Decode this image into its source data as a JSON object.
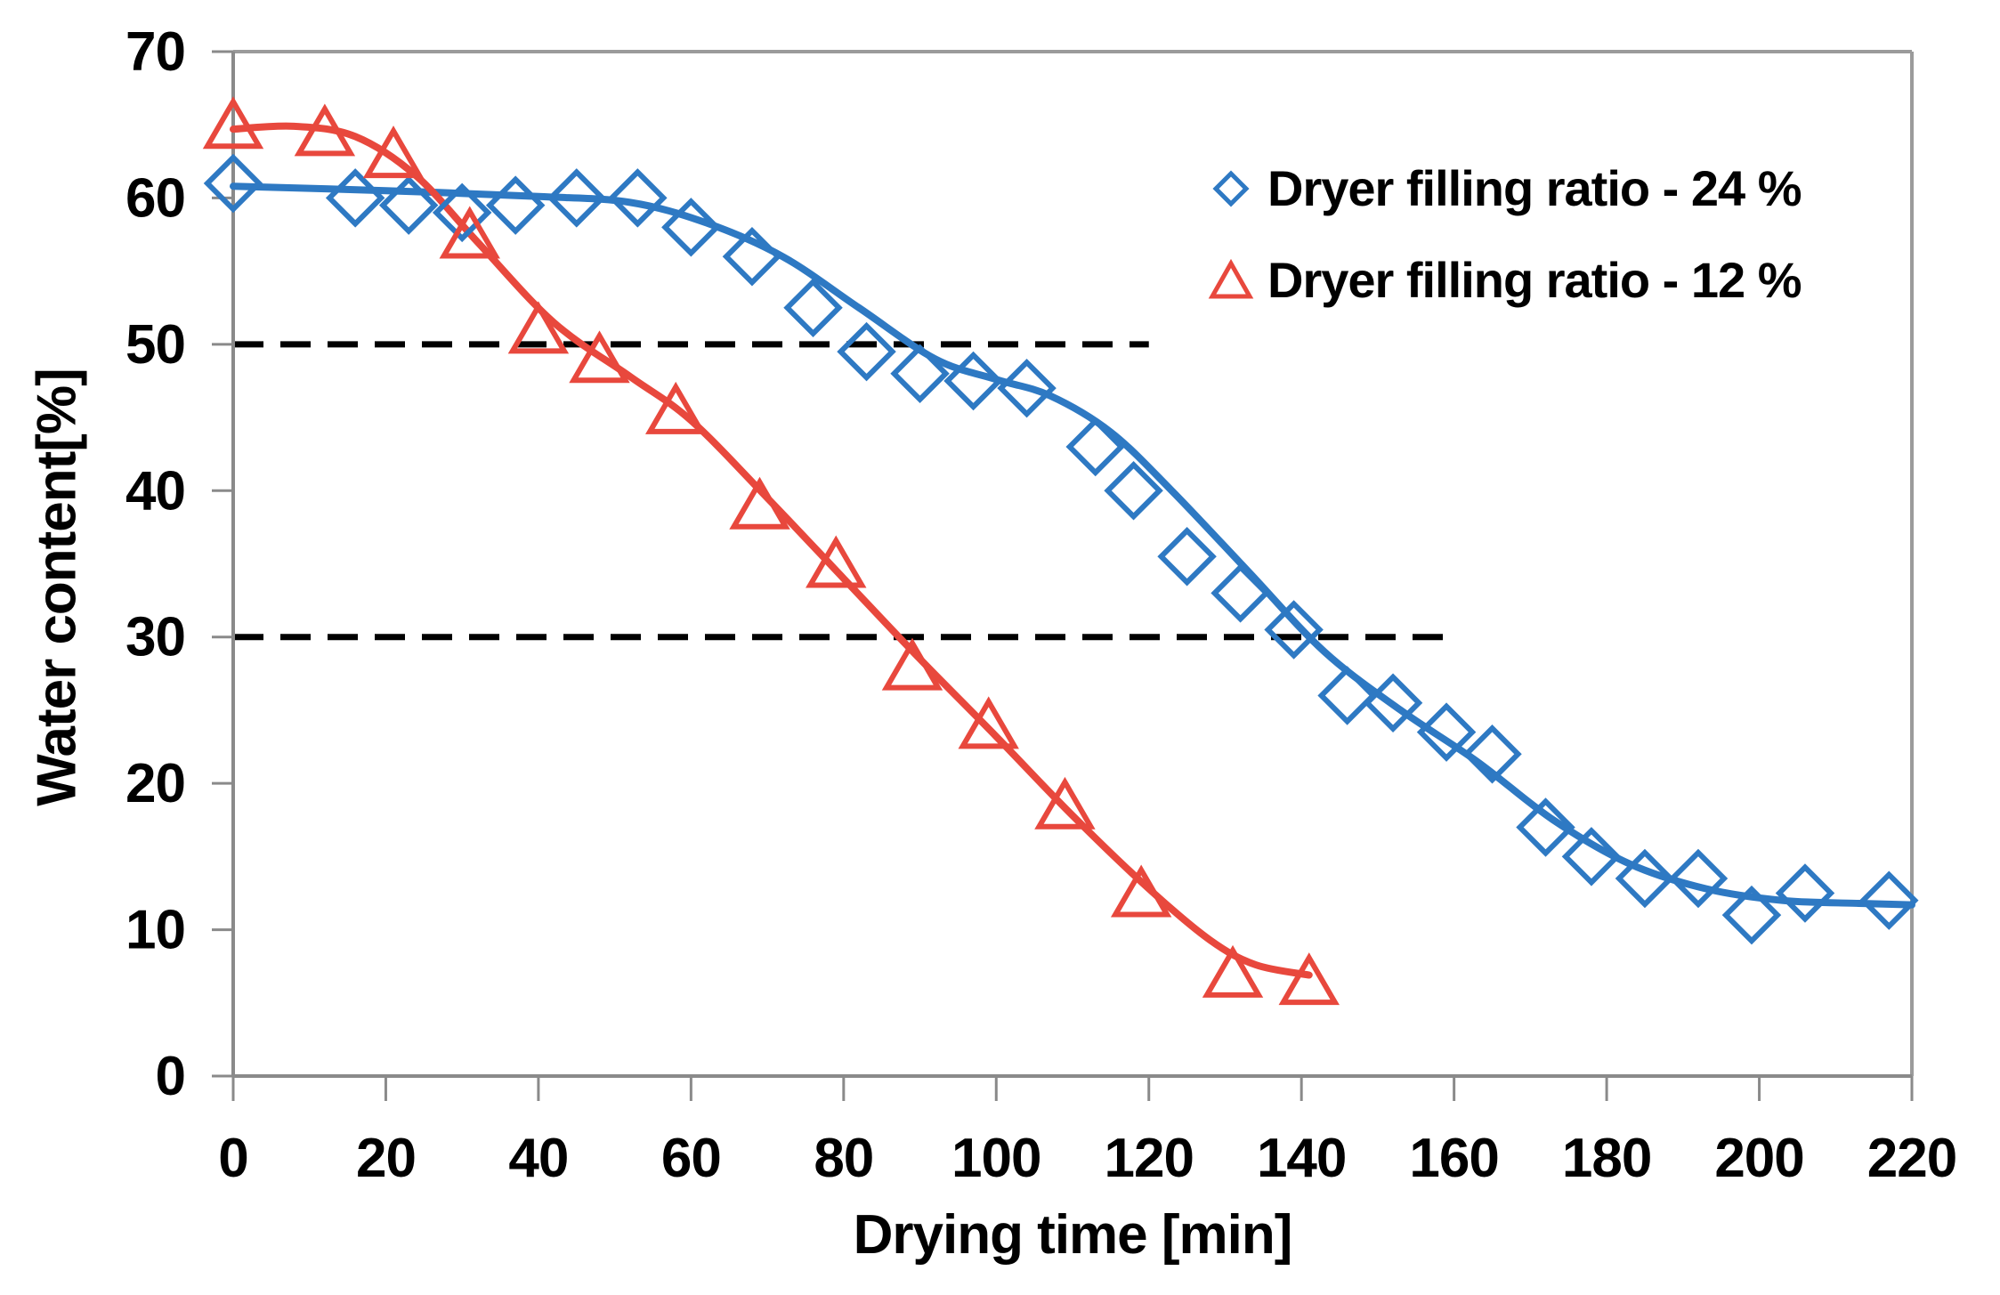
{
  "chart_data": {
    "type": "scatter",
    "title": "",
    "xlabel": "Drying time [min]",
    "ylabel": "Water content[%]",
    "xlim": [
      0,
      220
    ],
    "ylim": [
      0,
      70
    ],
    "xticks": [
      0,
      20,
      40,
      60,
      80,
      100,
      120,
      140,
      160,
      180,
      200,
      220
    ],
    "yticks": [
      0,
      10,
      20,
      30,
      40,
      50,
      60,
      70
    ],
    "grid": false,
    "legend_position": "top-right-inside",
    "series": [
      {
        "name": "Dryer filling ratio - 24 %",
        "marker": "diamond",
        "color": "#2E79C3",
        "points": [
          [
            0,
            61
          ],
          [
            16,
            60
          ],
          [
            23,
            59.5
          ],
          [
            30,
            59
          ],
          [
            37,
            59.5
          ],
          [
            45,
            60
          ],
          [
            53,
            60
          ],
          [
            60,
            58
          ],
          [
            68,
            56
          ],
          [
            76,
            52.5
          ],
          [
            83,
            49.5
          ],
          [
            90,
            48
          ],
          [
            97,
            47.5
          ],
          [
            104,
            47
          ],
          [
            113,
            43
          ],
          [
            118,
            40
          ],
          [
            125,
            35.5
          ],
          [
            132,
            33
          ],
          [
            139,
            30.5
          ],
          [
            146,
            26
          ],
          [
            152,
            25.5
          ],
          [
            159,
            23.5
          ],
          [
            165,
            22
          ],
          [
            172,
            17
          ],
          [
            178,
            15
          ],
          [
            185,
            13.5
          ],
          [
            192,
            13.5
          ],
          [
            199,
            11
          ],
          [
            206,
            12.5
          ],
          [
            217,
            12
          ]
        ],
        "trend": [
          [
            0,
            60.8
          ],
          [
            20,
            60.5
          ],
          [
            40,
            60.1
          ],
          [
            52,
            59.7
          ],
          [
            62,
            58.3
          ],
          [
            72,
            56
          ],
          [
            82,
            52.5
          ],
          [
            92,
            49
          ],
          [
            100,
            47.6
          ],
          [
            107,
            46.5
          ],
          [
            115,
            44
          ],
          [
            123,
            40
          ],
          [
            133,
            34.5
          ],
          [
            143,
            29
          ],
          [
            153,
            25
          ],
          [
            163,
            21.5
          ],
          [
            173,
            17.5
          ],
          [
            183,
            14.5
          ],
          [
            193,
            12.8
          ],
          [
            203,
            12
          ],
          [
            213,
            11.8
          ],
          [
            220,
            11.7
          ]
        ]
      },
      {
        "name": "Dryer filling ratio - 12 %",
        "marker": "triangle",
        "color": "#E8483D",
        "points": [
          [
            0,
            65
          ],
          [
            12,
            64.5
          ],
          [
            21,
            63
          ],
          [
            31,
            57.5
          ],
          [
            40,
            51
          ],
          [
            48,
            49
          ],
          [
            58,
            45.5
          ],
          [
            69,
            39
          ],
          [
            79,
            35
          ],
          [
            89,
            28
          ],
          [
            99,
            24
          ],
          [
            109,
            18.5
          ],
          [
            119,
            12.5
          ],
          [
            131,
            7
          ],
          [
            141,
            6.5
          ]
        ],
        "trend": [
          [
            0,
            64.7
          ],
          [
            8,
            64.9
          ],
          [
            16,
            64.2
          ],
          [
            24,
            61.5
          ],
          [
            32,
            57
          ],
          [
            42,
            51.5
          ],
          [
            52,
            47.8
          ],
          [
            60,
            44.8
          ],
          [
            70,
            39.5
          ],
          [
            80,
            34
          ],
          [
            90,
            28.5
          ],
          [
            100,
            23.2
          ],
          [
            110,
            17.8
          ],
          [
            120,
            12.8
          ],
          [
            128,
            9.3
          ],
          [
            134,
            7.6
          ],
          [
            141,
            6.9
          ]
        ]
      }
    ],
    "reference_lines": [
      {
        "y": 50,
        "x_start": 0,
        "x_end": 120,
        "style": "dashed",
        "color": "#000000"
      },
      {
        "y": 30,
        "x_start": 0,
        "x_end": 159,
        "style": "dashed",
        "color": "#000000"
      }
    ]
  },
  "colors": {
    "axis": "#8A8A8A",
    "frame": "#9B9B9B",
    "text": "#000000",
    "blue": "#2E79C3",
    "red": "#E8483D",
    "background": "#FFFFFF"
  }
}
